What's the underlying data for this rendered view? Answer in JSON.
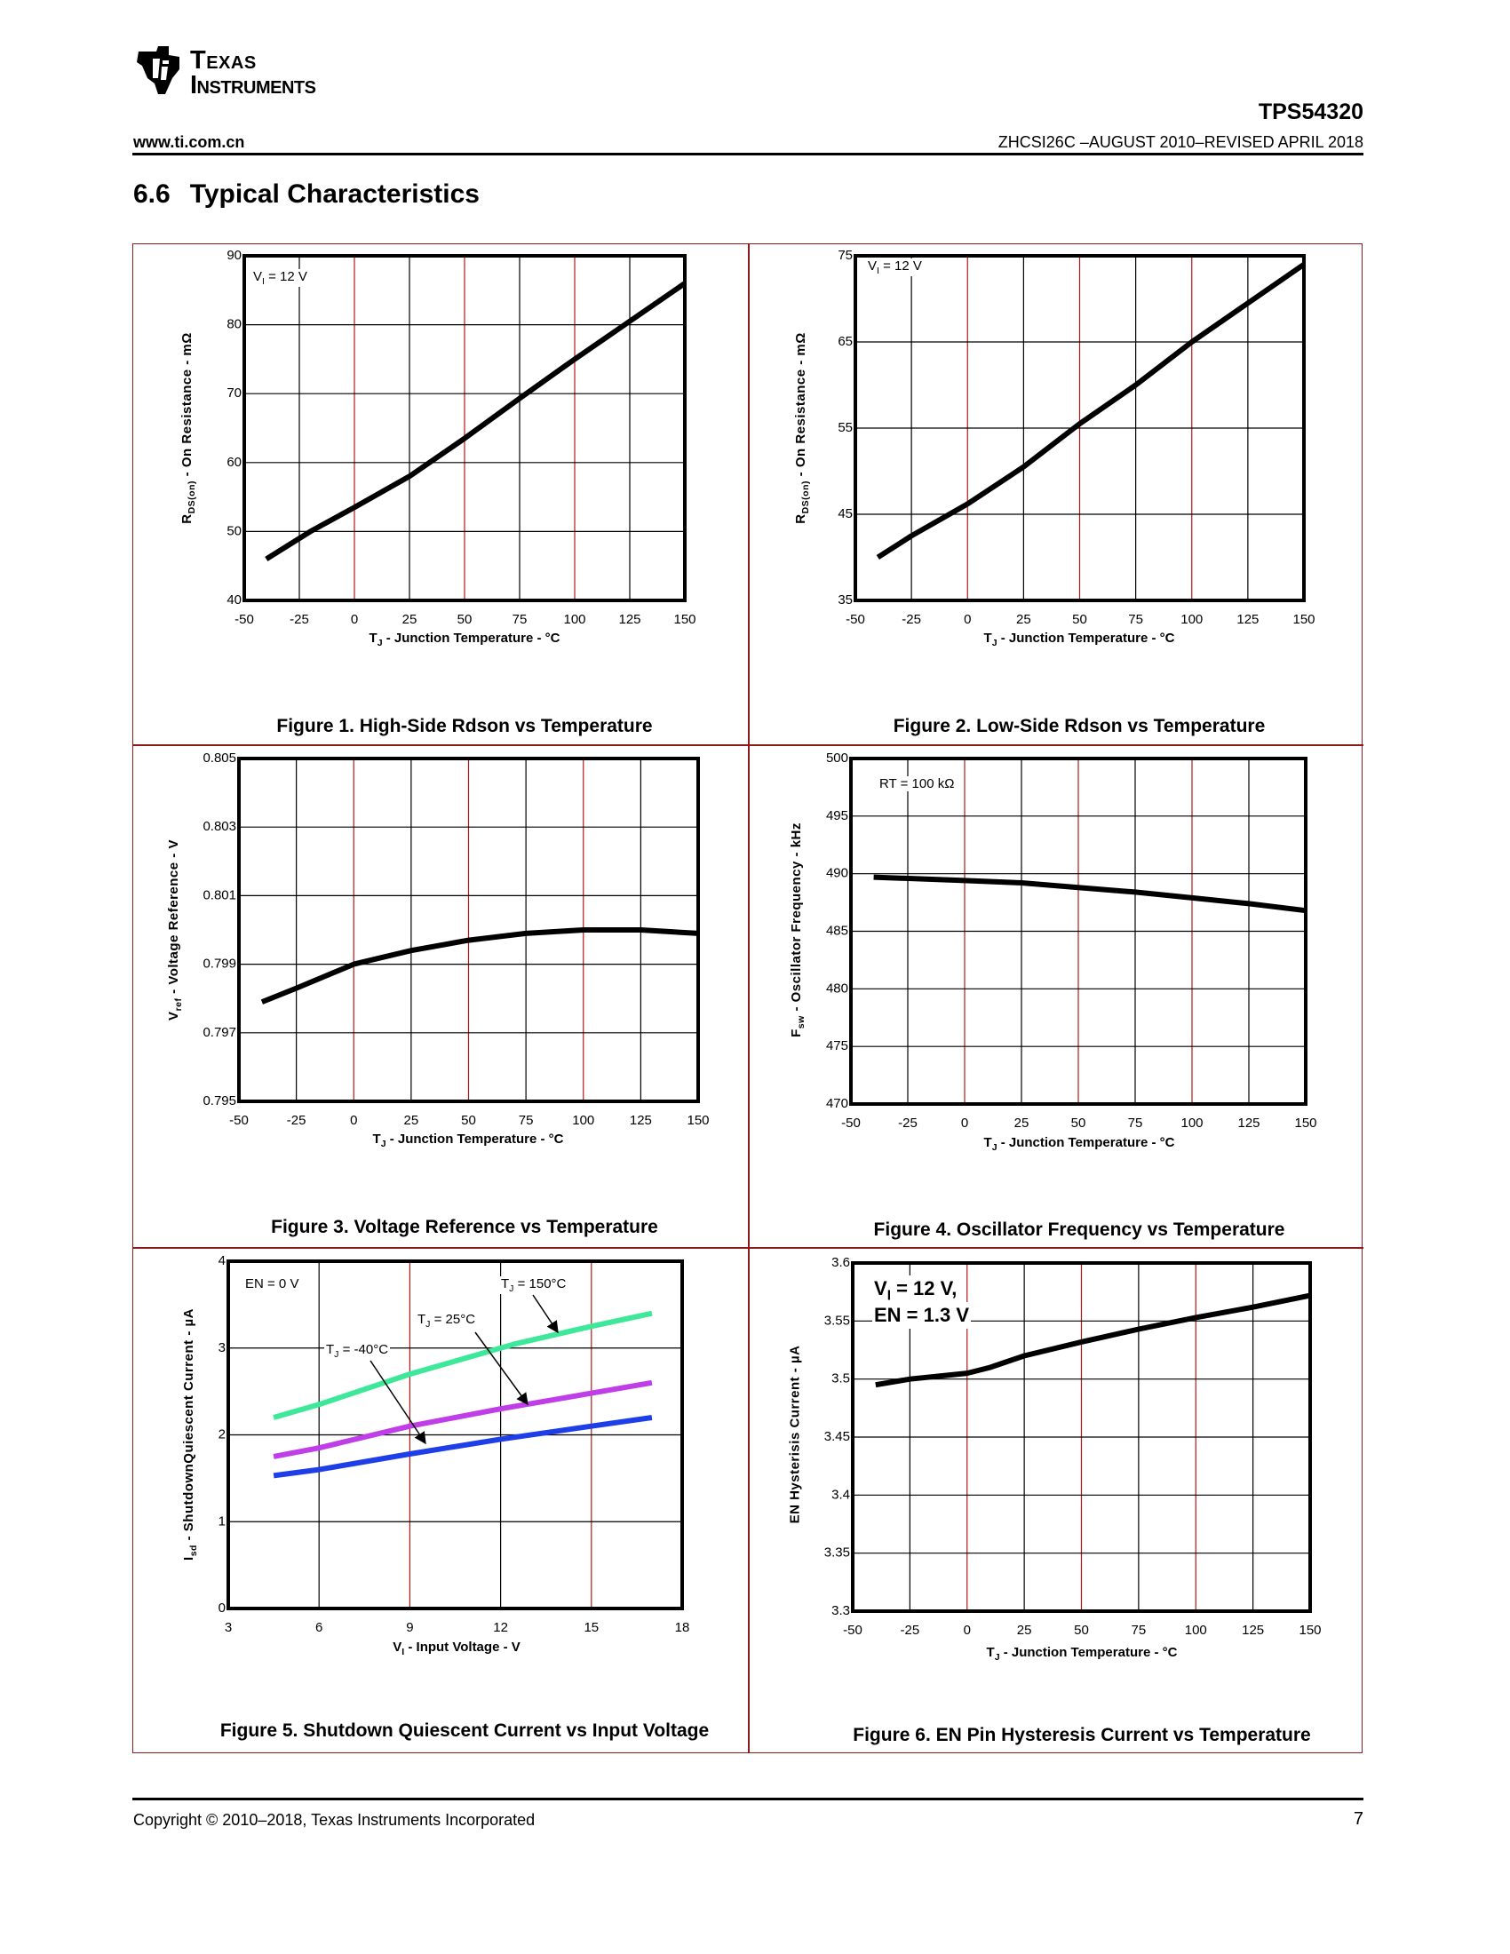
{
  "header": {
    "logo_line1": "Texas",
    "logo_line2": "Instruments",
    "part_number": "TPS54320",
    "website": "www.ti.com.cn",
    "doc_id": "ZHCSI26C –AUGUST 2010–REVISED APRIL 2018"
  },
  "section": {
    "number": "6.6",
    "title": "Typical Characteristics"
  },
  "footer": {
    "copyright": "Copyright © 2010–2018, Texas Instruments Incorporated",
    "page": "7"
  },
  "colors": {
    "grid_red": "#b01818",
    "curve": "#000000",
    "tj150": "#3ee89a",
    "tj25": "#c03ee8",
    "tjm40": "#1e3ee8"
  },
  "chart_data": [
    {
      "type": "line",
      "title": "Figure 1.  High-Side Rdson vs Temperature",
      "xlabel": {
        "main": "T",
        "sub": "J",
        "rest": " - Junction Temperature - °C"
      },
      "ylabel": {
        "main": "R",
        "sub": "DS(on)",
        "rest": " - On Resistance - mΩ"
      },
      "annotations": [
        {
          "main": "V",
          "sub": "I",
          "rest": " = 12 V"
        }
      ],
      "xlim": [
        -50,
        150
      ],
      "ylim": [
        40,
        90
      ],
      "xticks": [
        -50,
        -25,
        0,
        25,
        50,
        75,
        100,
        125,
        150
      ],
      "yticks": [
        40,
        50,
        60,
        70,
        80,
        90
      ],
      "series": [
        {
          "name": "VI = 12 V",
          "x": [
            -40,
            -20,
            0,
            25,
            50,
            75,
            100,
            125,
            150
          ],
          "y": [
            46,
            50,
            53.5,
            58,
            63.5,
            69.3,
            75,
            80.5,
            86
          ]
        }
      ]
    },
    {
      "type": "line",
      "title": "Figure 2. Low-Side Rdson vs Temperature",
      "xlabel": {
        "main": "T",
        "sub": "J",
        "rest": " - Junction Temperature - °C"
      },
      "ylabel": {
        "main": "R",
        "sub": "DS(on)",
        "rest": " - On Resistance - mΩ"
      },
      "annotations": [
        {
          "main": "V",
          "sub": "I",
          "rest": " = 12 V"
        }
      ],
      "xlim": [
        -50,
        150
      ],
      "ylim": [
        35,
        75
      ],
      "xticks": [
        -50,
        -25,
        0,
        25,
        50,
        75,
        100,
        125,
        150
      ],
      "yticks": [
        35,
        45,
        55,
        65,
        75
      ],
      "series": [
        {
          "name": "VI = 12 V",
          "x": [
            -40,
            -25,
            0,
            25,
            50,
            75,
            100,
            125,
            150
          ],
          "y": [
            40,
            42.5,
            46.2,
            50.5,
            55.5,
            60,
            65,
            69.5,
            74
          ]
        }
      ]
    },
    {
      "type": "line",
      "title": "Figure 3. Voltage Reference vs Temperature",
      "xlabel": {
        "main": "T",
        "sub": "J",
        "rest": " - Junction Temperature - °C"
      },
      "ylabel": {
        "main": "V",
        "sub": "ref",
        "rest": " - Voltage Reference - V"
      },
      "annotations": [],
      "xlim": [
        -50,
        150
      ],
      "ylim": [
        0.795,
        0.805
      ],
      "xticks": [
        -50,
        -25,
        0,
        25,
        50,
        75,
        100,
        125,
        150
      ],
      "yticks": [
        0.795,
        0.797,
        0.799,
        0.801,
        0.803,
        0.805
      ],
      "series": [
        {
          "name": "Vref",
          "x": [
            -40,
            -25,
            0,
            25,
            50,
            75,
            100,
            125,
            150
          ],
          "y": [
            0.7979,
            0.7983,
            0.799,
            0.7994,
            0.7997,
            0.7999,
            0.8,
            0.8,
            0.7999
          ]
        }
      ]
    },
    {
      "type": "line",
      "title": "Figure 4. Oscillator Frequency vs Temperature",
      "xlabel": {
        "main": "T",
        "sub": "J",
        "rest": " - Junction Temperature - °C"
      },
      "ylabel": {
        "main": "F",
        "sub": "sw",
        "rest": " - Oscillator Frequency - kHz"
      },
      "annotations": [
        {
          "main": "RT = 100 kΩ",
          "sub": "",
          "rest": ""
        }
      ],
      "xlim": [
        -50,
        150
      ],
      "ylim": [
        470,
        500
      ],
      "xticks": [
        -50,
        -25,
        0,
        25,
        50,
        75,
        100,
        125,
        150
      ],
      "yticks": [
        470,
        475,
        480,
        485,
        490,
        495,
        500
      ],
      "series": [
        {
          "name": "RT = 100 kOhm",
          "x": [
            -40,
            0,
            25,
            50,
            75,
            100,
            125,
            150
          ],
          "y": [
            489.7,
            489.4,
            489.2,
            488.8,
            488.4,
            487.9,
            487.4,
            486.8
          ]
        }
      ]
    },
    {
      "type": "line",
      "title": "Figure 5. Shutdown Quiescent Current vs Input Voltage",
      "xlabel": {
        "main": "V",
        "sub": "I",
        "rest": " - Input Voltage - V"
      },
      "ylabel": {
        "main": "I",
        "sub": "sd",
        "rest": " - ShutdownQuiescent Current - µA"
      },
      "annotations": [
        {
          "main": "EN = 0 V",
          "sub": "",
          "rest": ""
        },
        {
          "main": "T",
          "sub": "J",
          "rest": " = 150°C"
        },
        {
          "main": "T",
          "sub": "J",
          "rest": " = 25°C"
        },
        {
          "main": "T",
          "sub": "J",
          "rest": " = -40°C"
        }
      ],
      "xlim": [
        3,
        18
      ],
      "ylim": [
        0,
        4
      ],
      "xticks": [
        3,
        6,
        9,
        12,
        15,
        18
      ],
      "yticks": [
        0,
        1,
        2,
        3,
        4
      ],
      "series": [
        {
          "name": "TJ = 150°C",
          "x": [
            4.5,
            6,
            9,
            12,
            12.5,
            15,
            17
          ],
          "y": [
            2.2,
            2.35,
            2.7,
            3.0,
            3.05,
            3.25,
            3.4
          ]
        },
        {
          "name": "TJ = 25°C",
          "x": [
            4.5,
            6,
            9,
            12,
            15,
            17
          ],
          "y": [
            1.75,
            1.85,
            2.1,
            2.3,
            2.48,
            2.6
          ]
        },
        {
          "name": "TJ = -40°C",
          "x": [
            4.5,
            6,
            9,
            12,
            15,
            17
          ],
          "y": [
            1.53,
            1.6,
            1.78,
            1.95,
            2.1,
            2.2
          ]
        }
      ]
    },
    {
      "type": "line",
      "title": "Figure 6. EN Pin Hysteresis Current vs Temperature",
      "xlabel": {
        "main": "T",
        "sub": "J",
        "rest": " - Junction Temperature - °C"
      },
      "ylabel": {
        "main": "EN Hysterisis Current - µA",
        "sub": "",
        "rest": ""
      },
      "annotations": [
        {
          "main": "V",
          "sub": "I",
          "rest": " = 12 V,"
        },
        {
          "main": "EN = 1.3 V",
          "sub": "",
          "rest": ""
        }
      ],
      "xlim": [
        -50,
        150
      ],
      "ylim": [
        3.3,
        3.6
      ],
      "xticks": [
        -50,
        -25,
        0,
        25,
        50,
        75,
        100,
        125,
        150
      ],
      "yticks": [
        3.3,
        3.35,
        3.4,
        3.45,
        3.5,
        3.55,
        3.6
      ],
      "series": [
        {
          "name": "VI = 12 V, EN = 1.3 V",
          "x": [
            -40,
            -25,
            0,
            10,
            25,
            50,
            75,
            100,
            125,
            150
          ],
          "y": [
            3.495,
            3.5,
            3.505,
            3.51,
            3.52,
            3.532,
            3.543,
            3.553,
            3.562,
            3.572
          ]
        }
      ]
    }
  ]
}
